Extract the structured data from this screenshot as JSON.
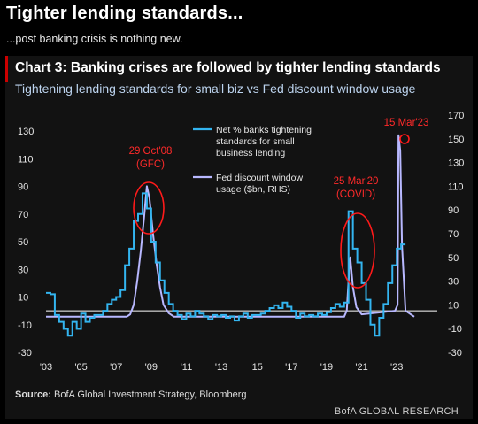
{
  "headline": "Tighter lending standards...",
  "subhead": "...post banking crisis is nothing new.",
  "source_label": "Source:",
  "source_text": " BofA Global Investment Strategy, Bloomberg",
  "brand": "BofA GLOBAL RESEARCH",
  "colors": {
    "series1": "#33b5f0",
    "series2": "#b8b8ff",
    "annotation": "#ff1a1a",
    "zero": "#ffffff"
  },
  "chart_data": {
    "type": "line",
    "title": "Chart 3: Banking crises are followed by tighter lending standards",
    "subtitle": "Tightening lending standards for small biz vs Fed discount window usage",
    "x_ticks": [
      "'03",
      "'05",
      "'07",
      "'09",
      "'11",
      "'13",
      "'15",
      "'17",
      "'19",
      "'21",
      "'23"
    ],
    "x_range": [
      2003,
      2024
    ],
    "y_left_ticks": [
      130,
      110,
      90,
      70,
      50,
      30,
      10,
      -10,
      -30
    ],
    "y_left_range": [
      -35,
      140
    ],
    "y_right_ticks": [
      170,
      150,
      130,
      110,
      90,
      70,
      50,
      30,
      10,
      -10,
      -30
    ],
    "y_right_range": [
      -35,
      180
    ],
    "series": [
      {
        "name": "Net % banks tightening standards for small business lending",
        "axis": "left",
        "x": [
          2003.0,
          2003.25,
          2003.5,
          2003.75,
          2004.0,
          2004.25,
          2004.5,
          2004.75,
          2005.0,
          2005.25,
          2005.5,
          2005.75,
          2006.0,
          2006.25,
          2006.5,
          2006.75,
          2007.0,
          2007.25,
          2007.5,
          2007.75,
          2008.0,
          2008.25,
          2008.5,
          2008.75,
          2009.0,
          2009.25,
          2009.5,
          2009.75,
          2010.0,
          2010.25,
          2010.5,
          2010.75,
          2011.0,
          2011.25,
          2011.5,
          2011.75,
          2012.0,
          2012.25,
          2012.5,
          2012.75,
          2013.0,
          2013.25,
          2013.5,
          2013.75,
          2014.0,
          2014.25,
          2014.5,
          2014.75,
          2015.0,
          2015.25,
          2015.5,
          2015.75,
          2016.0,
          2016.25,
          2016.5,
          2016.75,
          2017.0,
          2017.25,
          2017.5,
          2017.75,
          2018.0,
          2018.25,
          2018.5,
          2018.75,
          2019.0,
          2019.25,
          2019.5,
          2019.75,
          2020.0,
          2020.25,
          2020.5,
          2020.75,
          2021.0,
          2021.25,
          2021.5,
          2021.75,
          2022.0,
          2022.25,
          2022.5,
          2022.75,
          2023.0,
          2023.25
        ],
        "y": [
          13,
          12,
          -3,
          -8,
          -13,
          -18,
          -8,
          -13,
          -2,
          -8,
          -5,
          -3,
          -3,
          0,
          5,
          8,
          10,
          15,
          33,
          45,
          65,
          70,
          85,
          74,
          50,
          35,
          22,
          13,
          5,
          0,
          -3,
          -6,
          -2,
          -4,
          0,
          -2,
          -4,
          -6,
          -3,
          -4,
          -3,
          -5,
          -4,
          -7,
          -4,
          -2,
          -5,
          -3,
          -3,
          -2,
          0,
          2,
          4,
          2,
          6,
          3,
          0,
          -5,
          -2,
          -4,
          -3,
          -4,
          -2,
          -3,
          -1,
          2,
          5,
          3,
          6,
          72,
          45,
          35,
          20,
          8,
          -10,
          -18,
          -5,
          5,
          20,
          33,
          45,
          48
        ]
      },
      {
        "name": "Fed discount window usage ($bn, RHS)",
        "axis": "right",
        "x": [
          2003.0,
          2007.6,
          2007.8,
          2008.0,
          2008.2,
          2008.4,
          2008.6,
          2008.75,
          2008.9,
          2009.1,
          2009.3,
          2009.5,
          2009.7,
          2010.0,
          2010.3,
          2020.0,
          2020.15,
          2020.25,
          2020.35,
          2020.5,
          2020.7,
          2021.0,
          2022.9,
          2023.05,
          2023.1,
          2023.2,
          2023.3,
          2023.5,
          2024.0
        ],
        "y": [
          0,
          0,
          2,
          10,
          30,
          55,
          85,
          110,
          100,
          70,
          45,
          25,
          10,
          3,
          0,
          0,
          5,
          30,
          50,
          25,
          8,
          2,
          5,
          10,
          153,
          140,
          60,
          5,
          0
        ]
      }
    ],
    "annotations": [
      {
        "label": "29 Oct'08",
        "sub": "(GFC)"
      },
      {
        "label": "25 Mar'20",
        "sub": "(COVID)"
      },
      {
        "label": "15 Mar'23",
        "sub": ""
      }
    ]
  }
}
